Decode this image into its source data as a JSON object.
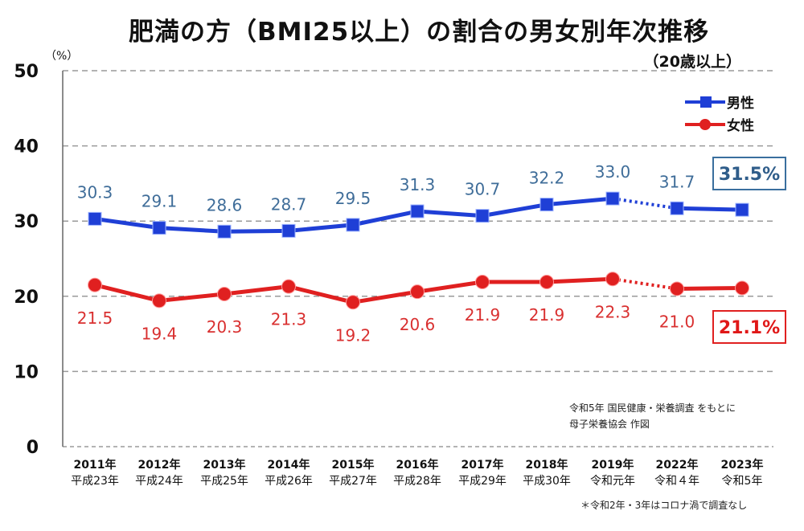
{
  "title": "肥満の方（BMI25以上）の割合の男女別年次推移",
  "subtitle": "（20歳以上）",
  "source_line1": "令和5年 国民健康・栄養調査 をもとに",
  "source_line2": "母子栄養協会 作図",
  "footnote": "＊令和2年・3年はコロナ渦で調査なし",
  "chart_data": {
    "type": "line",
    "title": "肥満の方（BMI25以上）の割合の男女別年次推移",
    "subtitle": "（20歳以上）",
    "ylabel": "（%）",
    "xlabel": "",
    "ylim": [
      0,
      50
    ],
    "yticks": [
      0,
      10,
      20,
      30,
      40,
      50
    ],
    "grid": true,
    "legend_position": "top-right",
    "categories": [
      "2011年",
      "2012年",
      "2013年",
      "2014年",
      "2015年",
      "2016年",
      "2017年",
      "2018年",
      "2019年",
      "2022年",
      "2023年"
    ],
    "categories_sub": [
      "平成23年",
      "平成24年",
      "平成25年",
      "平成26年",
      "平成27年",
      "平成28年",
      "平成29年",
      "平成30年",
      "令和元年",
      "令和４年",
      "令和5年"
    ],
    "series": [
      {
        "name": "男性",
        "color": "#1f3fd6",
        "label_color": "#3f6d99",
        "values": [
          30.3,
          29.1,
          28.6,
          28.7,
          29.5,
          31.3,
          30.7,
          32.2,
          33.0,
          31.7,
          31.5
        ],
        "labels": [
          "30.3",
          "29.1",
          "28.6",
          "28.7",
          "29.5",
          "31.3",
          "30.7",
          "32.2",
          "33.0",
          "31.7",
          "31.5%"
        ],
        "marker": "square"
      },
      {
        "name": "女性",
        "color": "#e02020",
        "label_color": "#d93030",
        "values": [
          21.5,
          19.4,
          20.3,
          21.3,
          19.2,
          20.6,
          21.9,
          21.9,
          22.3,
          21.0,
          21.1
        ],
        "labels": [
          "21.5",
          "19.4",
          "20.3",
          "21.3",
          "19.2",
          "20.6",
          "21.9",
          "21.9",
          "22.3",
          "21.0",
          "21.1%"
        ],
        "marker": "circle"
      }
    ]
  }
}
